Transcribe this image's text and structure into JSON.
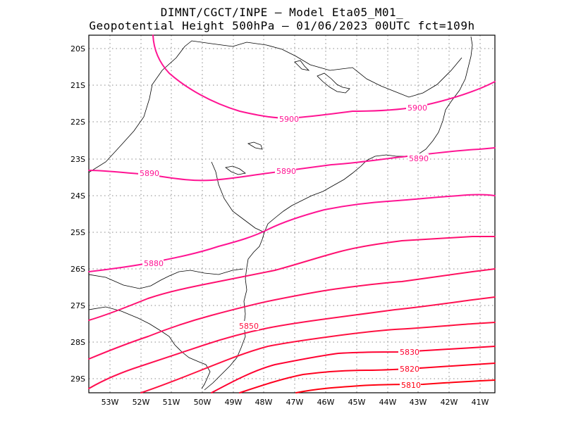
{
  "title": {
    "line1": "DIMNT/CGCT/INPE —  Model Eta05_M01_",
    "line2": "Geopotential Height 500hPa —  01/06/2023 00UTC fct=109h"
  },
  "axes": {
    "lat_ticks": [
      "20S",
      "21S",
      "22S",
      "23S",
      "24S",
      "25S",
      "26S",
      "27S",
      "28S",
      "29S"
    ],
    "lon_ticks": [
      "53W",
      "52W",
      "51W",
      "50W",
      "49W",
      "48W",
      "47W",
      "46W",
      "45W",
      "44W",
      "43W",
      "42W",
      "41W"
    ]
  },
  "contour_labels": [
    {
      "name": "5900-west",
      "text": "5900",
      "color": "#ff1493"
    },
    {
      "name": "5900-east",
      "text": "5900",
      "color": "#ff1493"
    },
    {
      "name": "5890-west",
      "text": "5890",
      "color": "#ff1493"
    },
    {
      "name": "5890-mid",
      "text": "5890",
      "color": "#ff1493"
    },
    {
      "name": "5890-east",
      "text": "5890",
      "color": "#ff1493"
    },
    {
      "name": "5880",
      "text": "5880",
      "color": "#ff1493"
    },
    {
      "name": "5850",
      "text": "5850",
      "color": "#ff1040"
    },
    {
      "name": "5830",
      "text": "5830",
      "color": "#ff0030"
    },
    {
      "name": "5820",
      "text": "5820",
      "color": "#ff0020"
    },
    {
      "name": "5810",
      "text": "5810",
      "color": "#ff0010"
    }
  ],
  "colors": {
    "high_contour": "#ff1493",
    "mid_contour": "#ff1050",
    "low_contour": "#ff0020",
    "coastline": "#000000",
    "grid": "#888888"
  }
}
